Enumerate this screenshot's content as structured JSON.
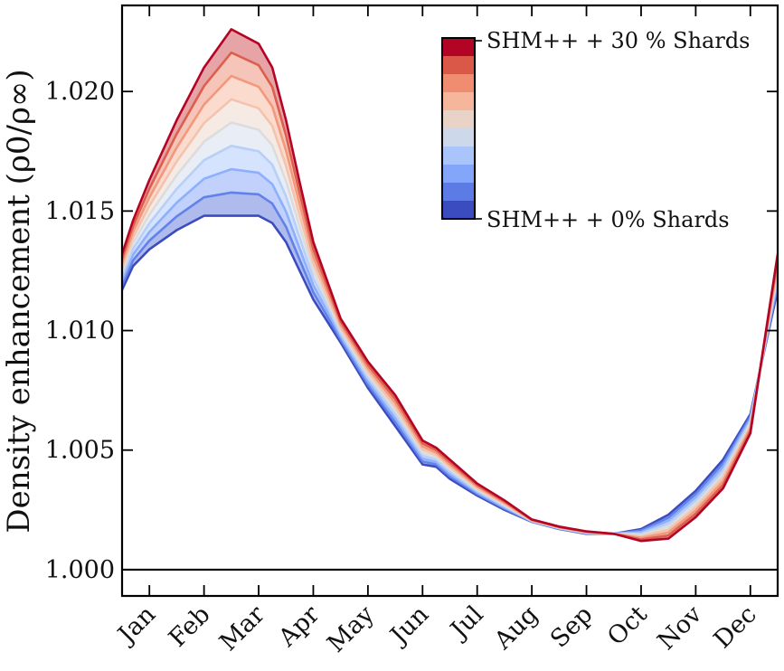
{
  "chart_data": {
    "type": "line",
    "ylabel": "Density enhancement (ρ0/ρ∞)",
    "xlabel": "",
    "ylim": [
      0.9989,
      1.0236
    ],
    "yticks": [
      1.0,
      1.005,
      1.01,
      1.015,
      1.02
    ],
    "ytick_labels": [
      "1.000",
      "1.005",
      "1.010",
      "1.015",
      "1.020"
    ],
    "xlim": [
      0,
      12
    ],
    "xtick_positions": [
      0.5,
      1.5,
      2.5,
      3.5,
      4.5,
      5.5,
      6.5,
      7.5,
      8.5,
      9.5,
      10.5,
      11.5
    ],
    "xtick_labels": [
      "Jan",
      "Feb",
      "Mar",
      "Apr",
      "May",
      "Jun",
      "Jul",
      "Aug",
      "Sep",
      "Oct",
      "Nov",
      "Dec"
    ],
    "reference_line": 1.0,
    "grid": false,
    "x": [
      0.0,
      0.2,
      0.5,
      1.0,
      1.5,
      2.0,
      2.5,
      2.75,
      3.0,
      3.25,
      3.5,
      4.0,
      4.5,
      5.0,
      5.5,
      5.75,
      6.0,
      6.5,
      7.0,
      7.5,
      8.0,
      8.5,
      9.0,
      9.5,
      10.0,
      10.5,
      11.0,
      11.5,
      12.0
    ],
    "series_low": [
      1.0117,
      1.0127,
      1.0134,
      1.0142,
      1.0148,
      1.0148,
      1.0148,
      1.0145,
      1.0137,
      1.0125,
      1.0113,
      1.0095,
      1.0076,
      1.006,
      1.0044,
      1.0043,
      1.0038,
      1.0031,
      1.0025,
      1.002,
      1.0017,
      1.0015,
      1.0015,
      1.0017,
      1.0023,
      1.0033,
      1.0046,
      1.0065,
      1.0117
    ],
    "series_high": [
      1.0132,
      1.0146,
      1.0163,
      1.0188,
      1.021,
      1.0226,
      1.022,
      1.021,
      1.0188,
      1.0162,
      1.0137,
      1.0105,
      1.0087,
      1.0073,
      1.0054,
      1.0051,
      1.0046,
      1.0036,
      1.0029,
      1.0021,
      1.0018,
      1.0016,
      1.0015,
      1.0012,
      1.0013,
      1.0022,
      1.0034,
      1.0057,
      1.0132
    ],
    "num_curves": 9,
    "colormap": [
      "#3b4cc0",
      "#5977e3",
      "#7b9ff9",
      "#9ebeff",
      "#c0d4f5",
      "#dddcdc",
      "#f2cbb7",
      "#f7ac8e",
      "#ee8468",
      "#d65244",
      "#b40426"
    ],
    "colorbar": {
      "top_label": "SHM++ + 30 % Shards",
      "bottom_label": "SHM++ + 0% Shards"
    }
  }
}
